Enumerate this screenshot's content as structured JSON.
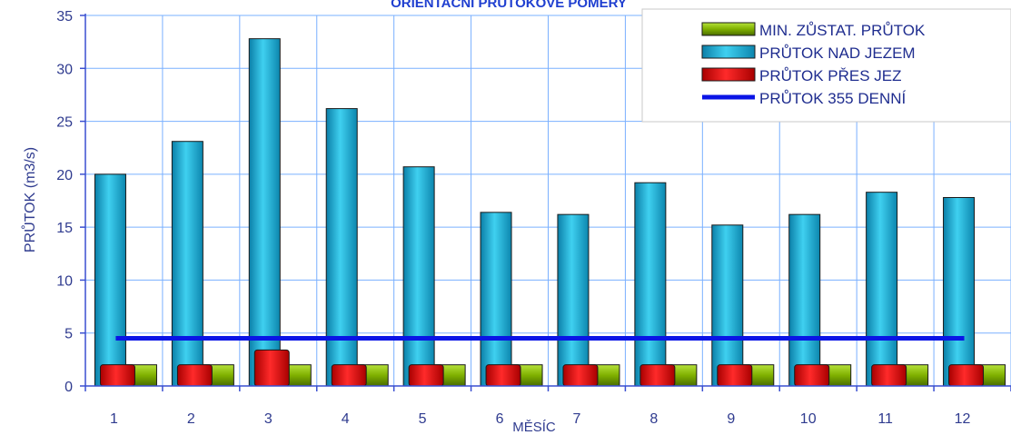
{
  "chart_data": {
    "type": "bar",
    "title": "ORIENTAČNÍ PRŮTOKOVÉ POMĚRY",
    "xlabel": "MĚSÍC",
    "ylabel": "PRŮTOK (m3/s)",
    "ylim": [
      0,
      35
    ],
    "yticks": [
      "0",
      "5",
      "10",
      "15",
      "20",
      "25",
      "30",
      "35"
    ],
    "grid": true,
    "legend_position": "top-right",
    "categories": [
      "1",
      "2",
      "3",
      "4",
      "5",
      "6",
      "7",
      "8",
      "9",
      "10",
      "11",
      "12"
    ],
    "series": [
      {
        "name": "MIN. ZŮSTAT. PRŮTOK",
        "kind": "bar",
        "color": "#7fb000",
        "values": [
          2,
          2,
          2,
          2,
          2,
          2,
          2,
          2,
          2,
          2,
          2,
          2
        ]
      },
      {
        "name": "PRŮTOK NAD JEZEM",
        "kind": "bar",
        "color": "#1bb4d8",
        "values": [
          20.0,
          23.1,
          32.8,
          26.2,
          20.7,
          16.4,
          16.2,
          19.2,
          15.2,
          16.2,
          18.3,
          17.8
        ]
      },
      {
        "name": "PRŮTOK PŘES JEZ",
        "kind": "bar",
        "color": "#e00000",
        "values": [
          2,
          2,
          3.4,
          2,
          2,
          2,
          2,
          2,
          2,
          2,
          2,
          2
        ]
      },
      {
        "name": "PRŮTOK 355 DENNÍ",
        "kind": "line",
        "color": "#0a14e6",
        "values": [
          4.5,
          4.5,
          4.5,
          4.5,
          4.5,
          4.5,
          4.5,
          4.5,
          4.5,
          4.5,
          4.5,
          4.5
        ]
      }
    ]
  }
}
